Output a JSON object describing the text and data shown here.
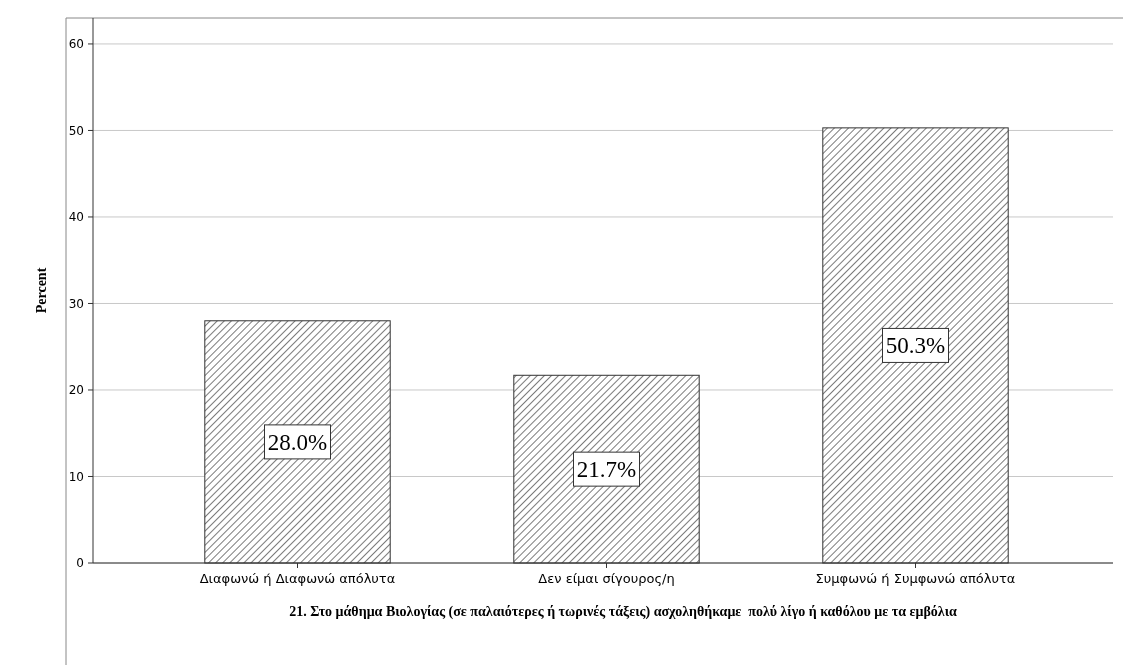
{
  "chart_data": {
    "type": "bar",
    "xlabel": "21. Στο μάθημα Βιολογίας (σε παλαιότερες ή τωρινές τάξεις) ασχοληθήκαμε  πολύ λίγο ή καθόλου με τα εμβόλια",
    "ylabel": "Percent",
    "categories": [
      "Διαφωνώ ή Διαφωνώ απόλυτα",
      "Δεν είμαι σίγουρος/η",
      "Συμφωνώ ή Συμφωνώ απόλυτα"
    ],
    "values": [
      28.0,
      21.7,
      50.3
    ],
    "value_labels": [
      "28.0%",
      "21.7%",
      "50.3%"
    ],
    "color": "#333333",
    "ylim": [
      0,
      63
    ],
    "yticks": [
      0,
      10,
      20,
      30,
      40,
      50,
      60
    ],
    "grid": "y"
  }
}
